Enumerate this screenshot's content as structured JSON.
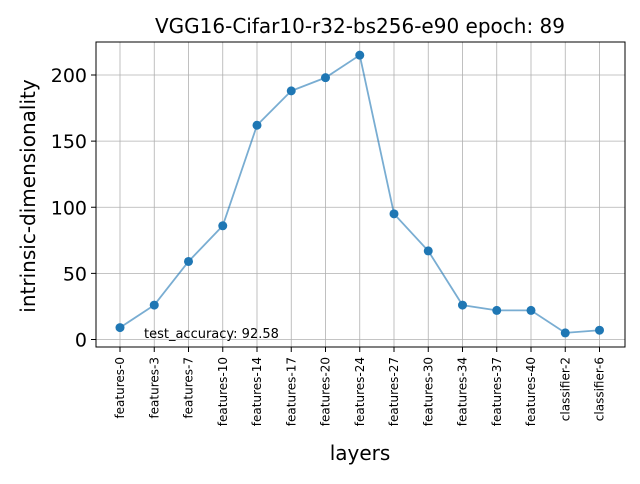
{
  "chart_data": {
    "type": "line",
    "title": "VGG16-Cifar10-r32-bs256-e90 epoch: 89",
    "xlabel": "layers",
    "ylabel": "intrinsic-dimensionality",
    "categories": [
      "features-0",
      "features-3",
      "features-7",
      "features-10",
      "features-14",
      "features-17",
      "features-20",
      "features-24",
      "features-27",
      "features-30",
      "features-34",
      "features-37",
      "features-40",
      "classifier-2",
      "classifier-6"
    ],
    "series": [
      {
        "values": [
          9,
          26,
          59,
          86,
          162,
          188,
          198,
          215,
          95,
          67,
          26,
          22,
          22,
          5,
          7
        ]
      }
    ],
    "ylim": [
      -5,
      225
    ],
    "yticks": [
      0,
      50,
      100,
      150,
      200
    ],
    "grid": true,
    "annotation": "test_accuracy: 92.58",
    "colors": {
      "line": "#1f77b4",
      "marker": "#1f77b4",
      "grid": "#b0b0b0"
    }
  }
}
